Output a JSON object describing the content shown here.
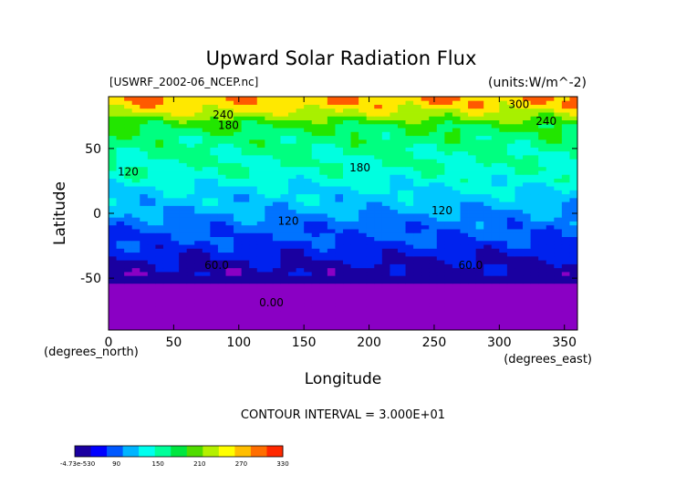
{
  "chart_data": {
    "type": "heatmap",
    "title": "Upward Solar Radiation Flux",
    "file_label": "[USWRF_2002-06_NCEP.nc]",
    "units_label": "(units:W/m^-2)",
    "xlabel": "Longitude",
    "ylabel": "Latitude",
    "x_unit_label": "(degrees_east)",
    "y_unit_label": "(degrees_north)",
    "xlim": [
      0,
      360
    ],
    "ylim": [
      -90,
      90
    ],
    "x_ticks": [
      0,
      50,
      100,
      150,
      200,
      250,
      300,
      350
    ],
    "y_ticks": [
      -50,
      0,
      50
    ],
    "contour_interval_text": "CONTOUR INTERVAL = 3.000E+01",
    "contour_labels": [
      {
        "text": "240",
        "x": 88,
        "y": 76
      },
      {
        "text": "180",
        "x": 92,
        "y": 68
      },
      {
        "text": "300",
        "x": 315,
        "y": 84
      },
      {
        "text": "240",
        "x": 336,
        "y": 71
      },
      {
        "text": "120",
        "x": 15,
        "y": 32
      },
      {
        "text": "180",
        "x": 193,
        "y": 35
      },
      {
        "text": "120",
        "x": 138,
        "y": -6
      },
      {
        "text": "120",
        "x": 256,
        "y": 2
      },
      {
        "text": "60.0",
        "x": 83,
        "y": -40
      },
      {
        "text": "60.0",
        "x": 278,
        "y": -40
      },
      {
        "text": "0.00",
        "x": 125,
        "y": -69
      }
    ],
    "latitude_profile": [
      {
        "lat": 90,
        "value": 300
      },
      {
        "lat": 82,
        "value": 285
      },
      {
        "lat": 75,
        "value": 250
      },
      {
        "lat": 68,
        "value": 215
      },
      {
        "lat": 58,
        "value": 195
      },
      {
        "lat": 48,
        "value": 185
      },
      {
        "lat": 38,
        "value": 178
      },
      {
        "lat": 28,
        "value": 168
      },
      {
        "lat": 18,
        "value": 148
      },
      {
        "lat": 10,
        "value": 135
      },
      {
        "lat": 0,
        "value": 120
      },
      {
        "lat": -10,
        "value": 100
      },
      {
        "lat": -20,
        "value": 88
      },
      {
        "lat": -30,
        "value": 70
      },
      {
        "lat": -40,
        "value": 55
      },
      {
        "lat": -50,
        "value": 40
      },
      {
        "lat": -55,
        "value": 28
      },
      {
        "lat": -62,
        "value": 14
      },
      {
        "lat": -70,
        "value": 2
      },
      {
        "lat": -90,
        "value": 0
      }
    ],
    "colorbar": {
      "tick_labels": [
        "-4.73e-530",
        "90",
        "150",
        "210",
        "270",
        "330"
      ],
      "colors": [
        "#1a00a0",
        "#0000ff",
        "#0058ff",
        "#00b4ff",
        "#00ffee",
        "#00ff9a",
        "#00e640",
        "#50dc00",
        "#b4f000",
        "#ffff00",
        "#ffbe00",
        "#ff6e00",
        "#ff2800"
      ]
    },
    "level_colors": {
      "0": "#8a00c4",
      "30": "#1a00a0",
      "60": "#0022ee",
      "90": "#0073ff",
      "120": "#00c8ff",
      "150": "#00ffe0",
      "180": "#00ff80",
      "210": "#22e600",
      "240": "#a8f000",
      "270": "#ffe800",
      "300": "#ff5a00",
      "330": "#ff1e00"
    }
  }
}
